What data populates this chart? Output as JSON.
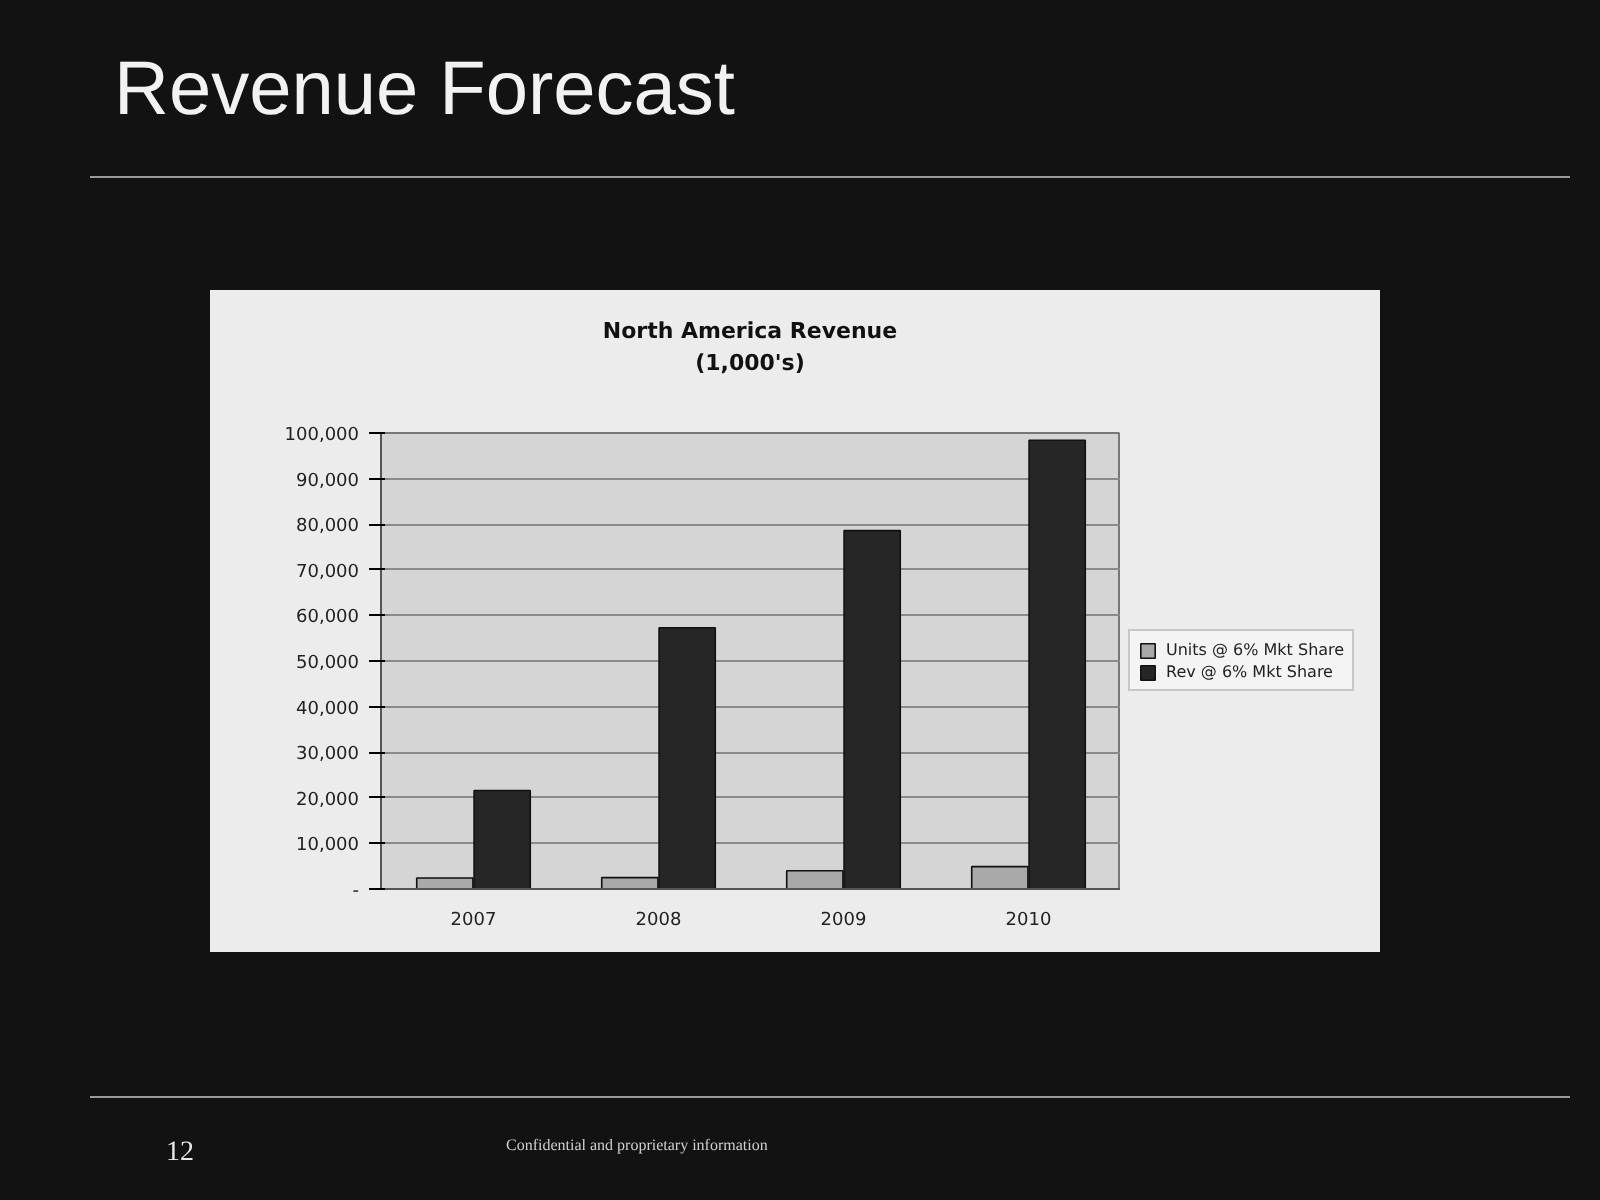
{
  "chart_data": {
    "type": "bar",
    "title": "North America Revenue\n(1,000's)",
    "categories": [
      "2007",
      "2008",
      "2009",
      "2010"
    ],
    "series": [
      {
        "name": "Units @ 6% Mkt Share",
        "color": "#a9a9a9",
        "values": [
          2400,
          2500,
          4000,
          4900
        ]
      },
      {
        "name": "Rev @ 6% Mkt Share",
        "color": "#262626",
        "values": [
          21600,
          57300,
          78600,
          98400
        ]
      }
    ],
    "ylim": [
      0,
      100000
    ],
    "yticks": [
      {
        "value": 0,
        "label": "-"
      },
      {
        "value": 10000,
        "label": "10,000"
      },
      {
        "value": 20000,
        "label": "20,000"
      },
      {
        "value": 30000,
        "label": "30,000"
      },
      {
        "value": 40000,
        "label": "40,000"
      },
      {
        "value": 50000,
        "label": "50,000"
      },
      {
        "value": 60000,
        "label": "60,000"
      },
      {
        "value": 70000,
        "label": "70,000"
      },
      {
        "value": 80000,
        "label": "80,000"
      },
      {
        "value": 90000,
        "label": "90,000"
      },
      {
        "value": 100000,
        "label": "100,000"
      }
    ],
    "grid": "y",
    "legend": "right",
    "annotations": [
      "Revenue Forecast",
      "12",
      "Confidential and proprietary information"
    ]
  }
}
